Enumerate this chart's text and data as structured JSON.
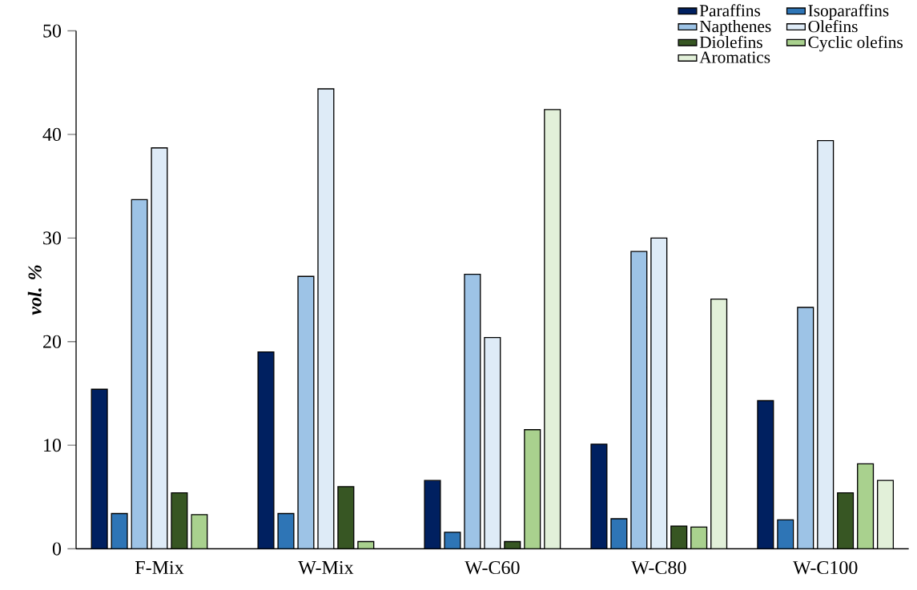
{
  "chart_data": {
    "type": "bar",
    "ylabel": "vol. %",
    "categories": [
      "F-Mix",
      "W-Mix",
      "W-C60",
      "W-C80",
      "W-C100"
    ],
    "series": [
      {
        "name": "Paraffins",
        "color": "#002060",
        "values": [
          15.4,
          19.0,
          6.6,
          10.1,
          14.3
        ]
      },
      {
        "name": "Isoparaffins",
        "color": "#2e75b6",
        "values": [
          3.4,
          3.4,
          1.6,
          2.9,
          2.8
        ]
      },
      {
        "name": "Napthenes",
        "color": "#9dc3e6",
        "values": [
          33.7,
          26.3,
          26.5,
          28.7,
          23.3
        ]
      },
      {
        "name": "Olefins",
        "color": "#deebf7",
        "values": [
          38.7,
          44.4,
          20.4,
          30.0,
          39.4
        ]
      },
      {
        "name": "Diolefins",
        "color": "#375623",
        "values": [
          5.4,
          6.0,
          0.7,
          2.2,
          5.4
        ]
      },
      {
        "name": "Cyclic olefins",
        "color": "#a9d18e",
        "values": [
          3.3,
          0.7,
          11.5,
          2.1,
          8.2
        ]
      },
      {
        "name": "Aromatics",
        "color": "#e2f0d9",
        "values": [
          null,
          null,
          42.4,
          24.1,
          6.6
        ]
      }
    ],
    "ylim": [
      0,
      50
    ],
    "yticks": [
      0,
      10,
      20,
      30,
      40,
      50
    ],
    "legend": "top right"
  }
}
